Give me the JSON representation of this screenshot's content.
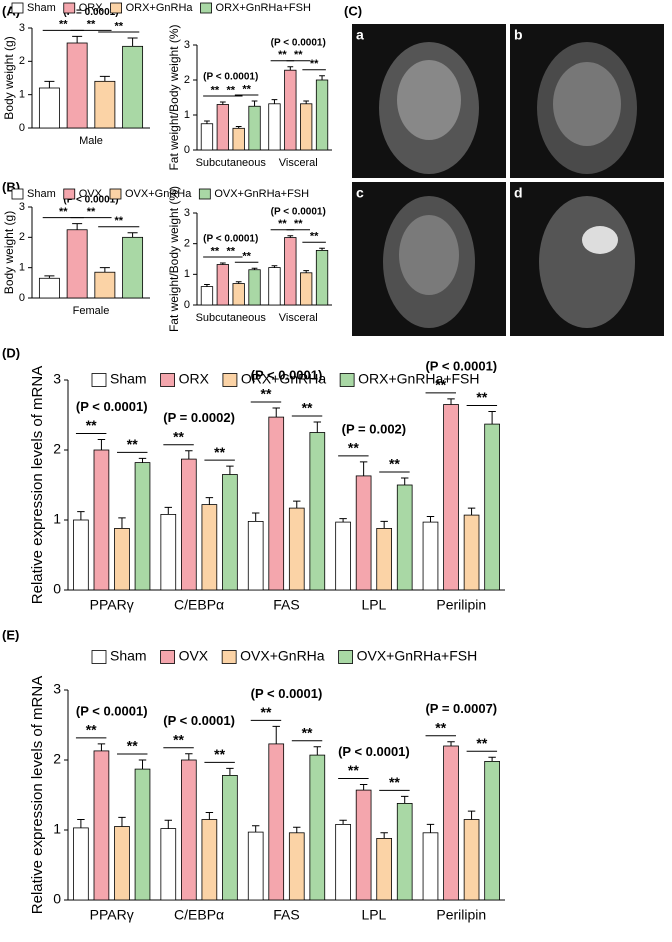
{
  "figure": {
    "panel_labels": [
      "(A)",
      "(B)",
      "(C)",
      "(D)",
      "(E)"
    ],
    "image_labels": [
      "a",
      "b",
      "c",
      "d"
    ]
  },
  "chart_data": [
    {
      "type": "bar",
      "ylabel": "Body weight (g)",
      "categories": [
        "Male"
      ],
      "ylim": [
        0,
        3
      ],
      "yticks": [
        0,
        1,
        2,
        3
      ],
      "p_labels": [
        "(P = 0.0001)"
      ],
      "significance_label": "**",
      "series": [
        {
          "name": "Sham",
          "color": "#ffffff",
          "values": [
            1.2
          ],
          "errors": [
            0.2
          ]
        },
        {
          "name": "ORX",
          "color": "#f4a6ad",
          "values": [
            2.55
          ],
          "errors": [
            0.2
          ]
        },
        {
          "name": "ORX+GnRHa",
          "color": "#fbd3a6",
          "values": [
            1.4
          ],
          "errors": [
            0.15
          ]
        },
        {
          "name": "ORX+GnRHa+FSH",
          "color": "#a9d8a5",
          "values": [
            2.45
          ],
          "errors": [
            0.25
          ]
        }
      ]
    },
    {
      "type": "bar",
      "ylabel": "Fat weight/Body weight (%)",
      "categories": [
        "Subcutaneous",
        "Visceral"
      ],
      "ylim": [
        0,
        3
      ],
      "yticks": [
        0,
        1,
        2,
        3
      ],
      "p_labels": [
        "(P < 0.0001)",
        "(P < 0.0001)"
      ],
      "significance_label": "**",
      "series": [
        {
          "color": "#ffffff",
          "values": [
            0.75,
            1.32
          ],
          "errors": [
            0.08,
            0.12
          ]
        },
        {
          "color": "#f4a6ad",
          "values": [
            1.3,
            2.28
          ],
          "errors": [
            0.07,
            0.1
          ]
        },
        {
          "color": "#fbd3a6",
          "values": [
            0.62,
            1.32
          ],
          "errors": [
            0.05,
            0.08
          ]
        },
        {
          "color": "#a9d8a5",
          "values": [
            1.25,
            2.0
          ],
          "errors": [
            0.15,
            0.12
          ]
        }
      ]
    },
    {
      "type": "bar",
      "ylabel": "Body weight (g)",
      "categories": [
        "Female"
      ],
      "ylim": [
        0,
        3
      ],
      "yticks": [
        0,
        1,
        2,
        3
      ],
      "p_labels": [
        "(P < 0.0001)"
      ],
      "significance_label": "**",
      "series": [
        {
          "name": "Sham",
          "color": "#ffffff",
          "values": [
            0.65
          ],
          "errors": [
            0.08
          ]
        },
        {
          "name": "OVX",
          "color": "#f4a6ad",
          "values": [
            2.25
          ],
          "errors": [
            0.2
          ]
        },
        {
          "name": "OVX+GnRHa",
          "color": "#fbd3a6",
          "values": [
            0.85
          ],
          "errors": [
            0.15
          ]
        },
        {
          "name": "OVX+GnRHa+FSH",
          "color": "#a9d8a5",
          "values": [
            2.0
          ],
          "errors": [
            0.15
          ]
        }
      ]
    },
    {
      "type": "bar",
      "ylabel": "Fat weight/Body weight (%)",
      "categories": [
        "Subcutaneous",
        "Visceral"
      ],
      "ylim": [
        0,
        3
      ],
      "yticks": [
        0,
        1,
        2,
        3
      ],
      "p_labels": [
        "(P < 0.0001)",
        "(P < 0.0001)"
      ],
      "significance_label": "**",
      "series": [
        {
          "color": "#ffffff",
          "values": [
            0.6,
            1.22
          ],
          "errors": [
            0.07,
            0.06
          ]
        },
        {
          "color": "#f4a6ad",
          "values": [
            1.32,
            2.2
          ],
          "errors": [
            0.05,
            0.06
          ]
        },
        {
          "color": "#fbd3a6",
          "values": [
            0.7,
            1.05
          ],
          "errors": [
            0.06,
            0.07
          ]
        },
        {
          "color": "#a9d8a5",
          "values": [
            1.15,
            1.78
          ],
          "errors": [
            0.05,
            0.07
          ]
        }
      ]
    },
    {
      "type": "bar",
      "ylabel": "Relative expression levels of mRNA",
      "categories": [
        "PPARγ",
        "C/EBPα",
        "FAS",
        "LPL",
        "Perilipin"
      ],
      "ylim": [
        0,
        3
      ],
      "yticks": [
        0,
        1,
        2,
        3
      ],
      "p_labels": [
        "(P < 0.0001)",
        "(P = 0.0002)",
        "(P < 0.0001)",
        "(P = 0.002)",
        "(P < 0.0001)"
      ],
      "significance_label": "**",
      "series": [
        {
          "name": "Sham",
          "color": "#ffffff",
          "values": [
            1.0,
            1.08,
            0.98,
            0.97,
            0.97
          ],
          "errors": [
            0.12,
            0.1,
            0.12,
            0.05,
            0.08
          ]
        },
        {
          "name": "ORX",
          "color": "#f4a6ad",
          "values": [
            2.0,
            1.87,
            2.47,
            1.63,
            2.65
          ],
          "errors": [
            0.15,
            0.12,
            0.13,
            0.2,
            0.08
          ]
        },
        {
          "name": "ORX+GnRHa",
          "color": "#fbd3a6",
          "values": [
            0.88,
            1.22,
            1.17,
            0.88,
            1.07
          ],
          "errors": [
            0.15,
            0.1,
            0.1,
            0.1,
            0.1
          ]
        },
        {
          "name": "ORX+GnRHa+FSH",
          "color": "#a9d8a5",
          "values": [
            1.82,
            1.65,
            2.25,
            1.5,
            2.37
          ],
          "errors": [
            0.06,
            0.12,
            0.15,
            0.1,
            0.18
          ]
        }
      ]
    },
    {
      "type": "bar",
      "ylabel": "Relative expression levels of mRNA",
      "categories": [
        "PPARγ",
        "C/EBPα",
        "FAS",
        "LPL",
        "Perilipin"
      ],
      "ylim": [
        0,
        3
      ],
      "yticks": [
        0,
        1,
        2,
        3
      ],
      "p_labels": [
        "(P < 0.0001)",
        "(P < 0.0001)",
        "(P < 0.0001)",
        "(P < 0.0001)",
        "(P = 0.0007)"
      ],
      "significance_label": "**",
      "series": [
        {
          "name": "Sham",
          "color": "#ffffff",
          "values": [
            1.03,
            1.02,
            0.97,
            1.08,
            0.96
          ],
          "errors": [
            0.12,
            0.12,
            0.09,
            0.06,
            0.12
          ]
        },
        {
          "name": "OVX",
          "color": "#f4a6ad",
          "values": [
            2.13,
            2.0,
            2.23,
            1.57,
            2.2
          ],
          "errors": [
            0.1,
            0.09,
            0.25,
            0.08,
            0.06
          ]
        },
        {
          "name": "OVX+GnRHa",
          "color": "#fbd3a6",
          "values": [
            1.05,
            1.15,
            0.96,
            0.88,
            1.15
          ],
          "errors": [
            0.13,
            0.1,
            0.08,
            0.08,
            0.12
          ]
        },
        {
          "name": "OVX+GnRHa+FSH",
          "color": "#a9d8a5",
          "values": [
            1.87,
            1.78,
            2.07,
            1.38,
            1.98
          ],
          "errors": [
            0.13,
            0.1,
            0.12,
            0.1,
            0.06
          ]
        }
      ]
    }
  ]
}
